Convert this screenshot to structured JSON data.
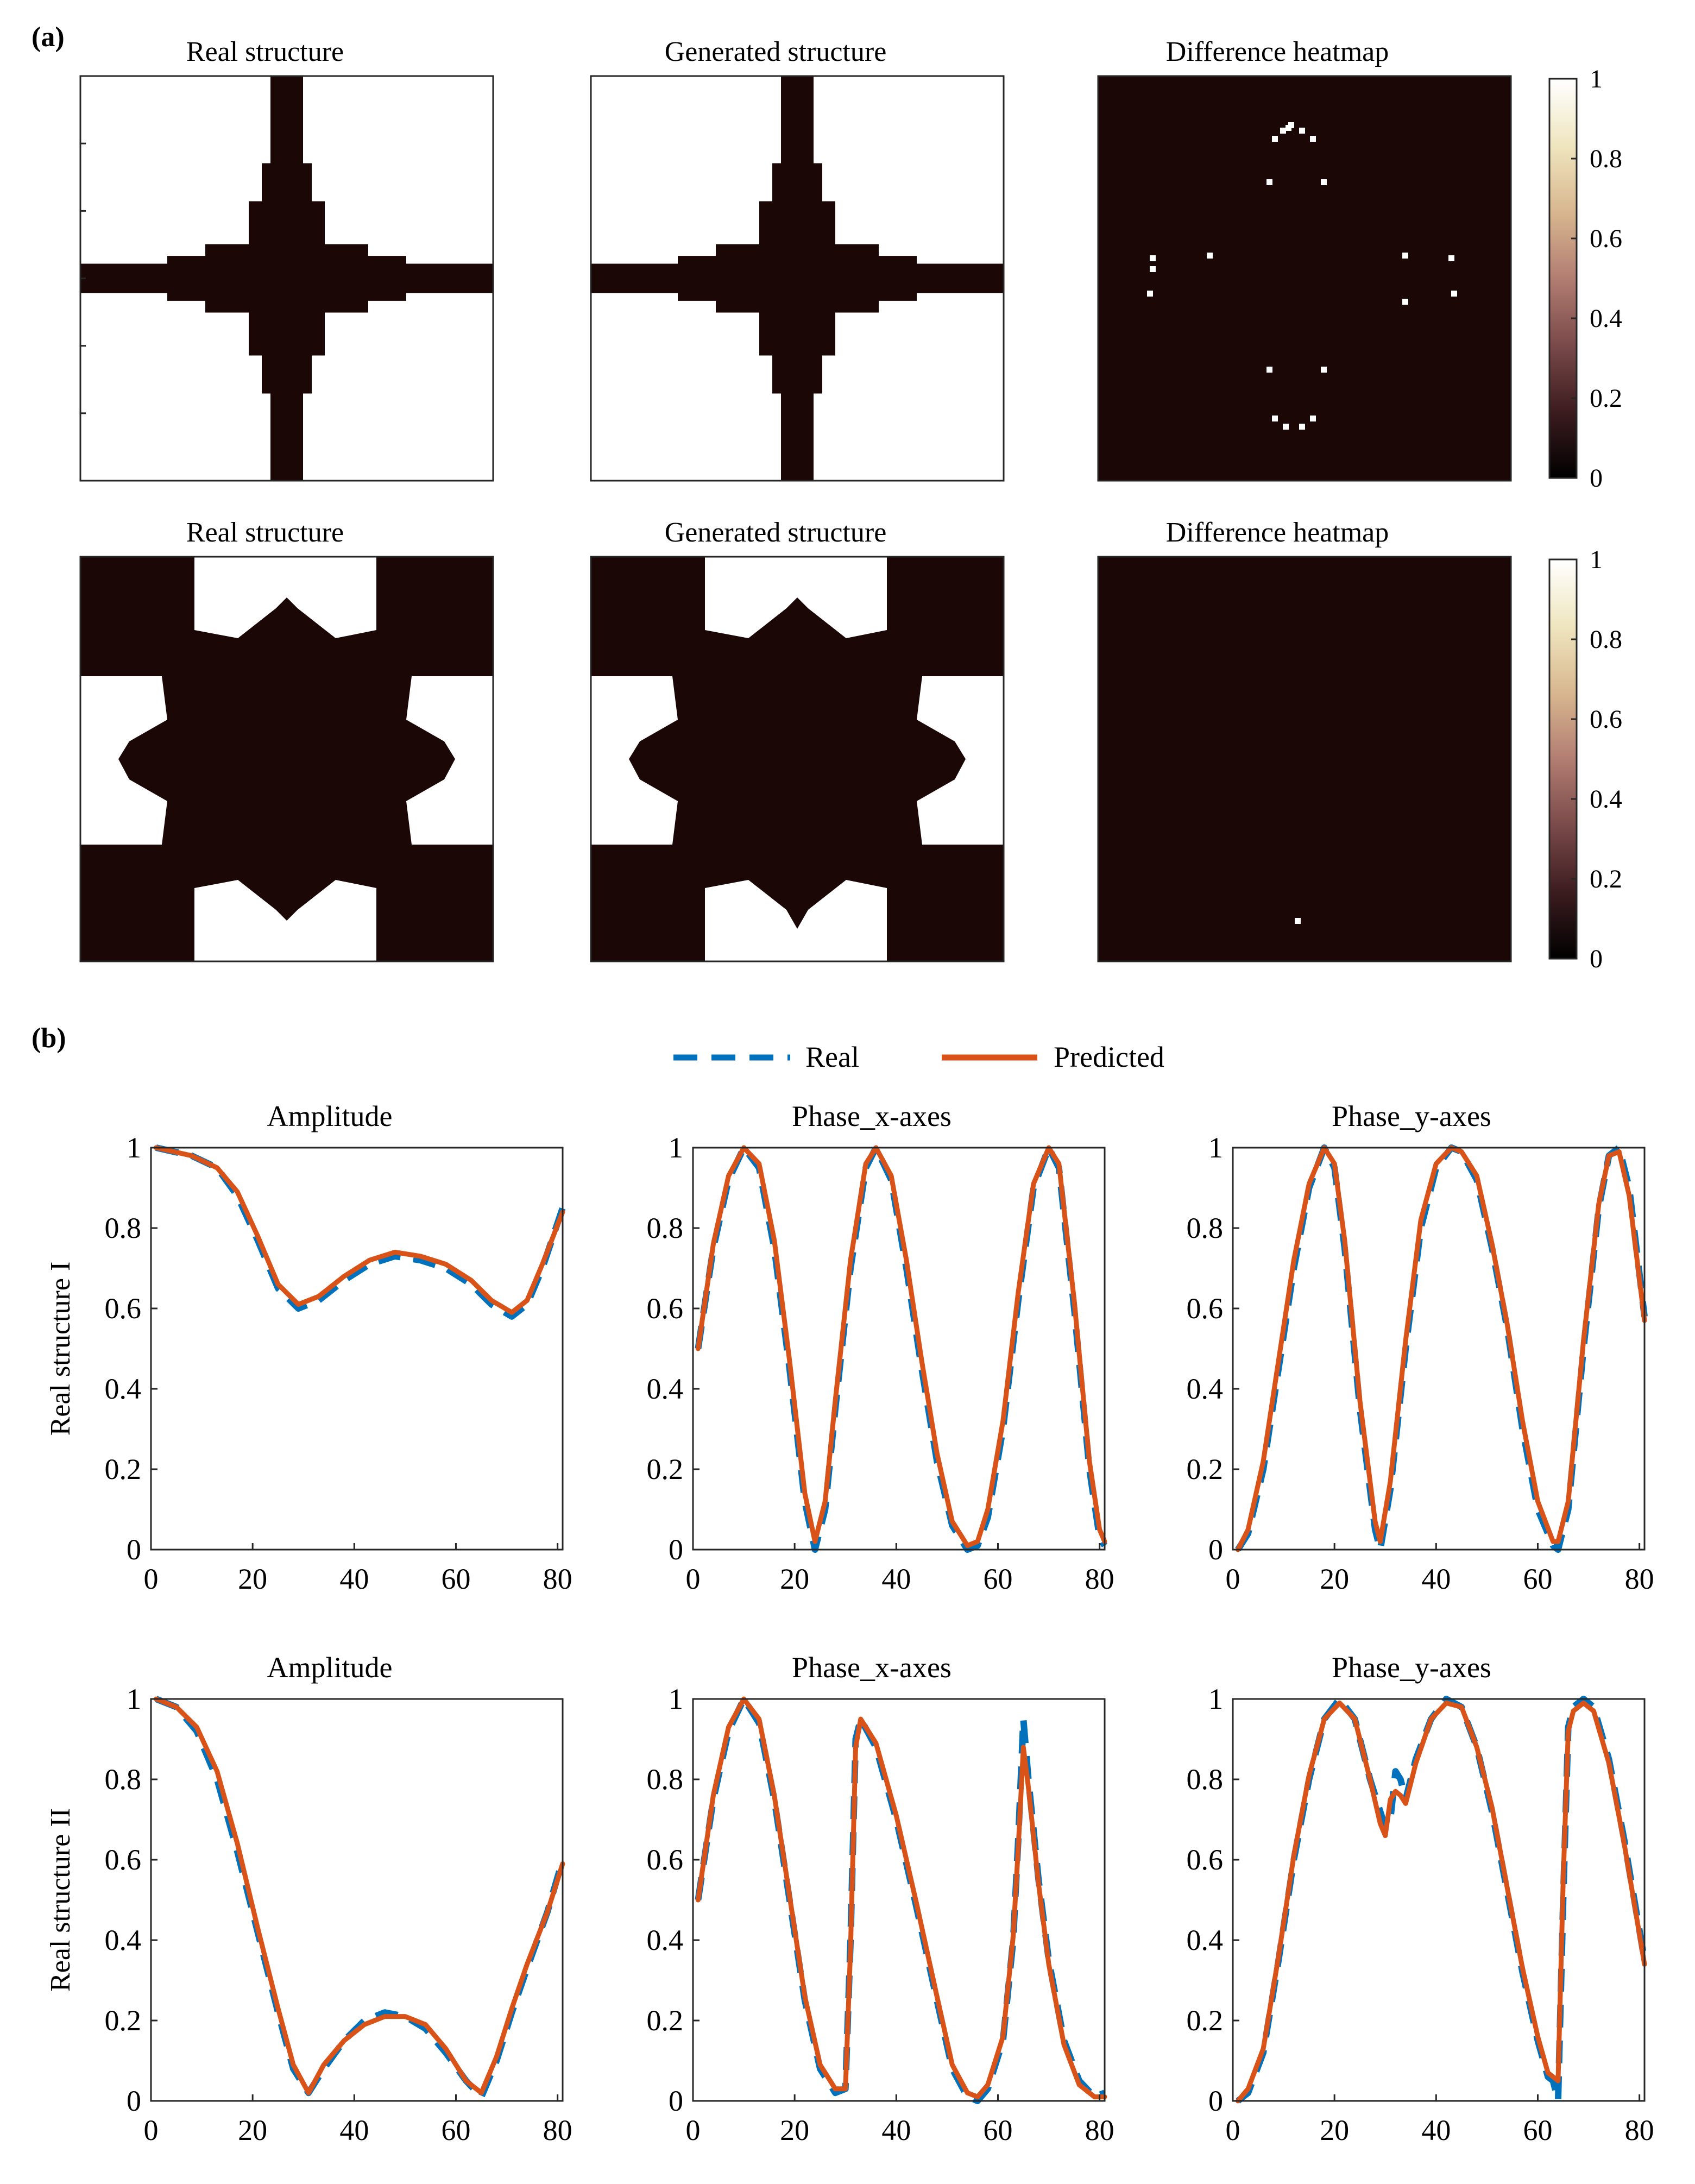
{
  "panel_labels": {
    "a": "(a)",
    "b": "(b)"
  },
  "colors": {
    "structure": "#1a0706",
    "real": "#0072BD",
    "predicted": "#D95319",
    "colormap": [
      "#000000",
      "#3c1c1f",
      "#7a4a4a",
      "#b27d72",
      "#d8b78f",
      "#efe6bf",
      "#ffffff"
    ]
  },
  "section_a": {
    "rows": [
      {
        "titles": [
          "Real structure",
          "Generated structure",
          "Difference heatmap"
        ],
        "colorbar_ticks": [
          "0",
          "0.2",
          "0.4",
          "0.6",
          "0.8",
          "1"
        ]
      },
      {
        "titles": [
          "Real structure",
          "Generated structure",
          "Difference heatmap"
        ],
        "colorbar_ticks": [
          "0",
          "0.2",
          "0.4",
          "0.6",
          "0.8",
          "1"
        ]
      }
    ]
  },
  "legend": {
    "real": "Real",
    "predicted": "Predicted"
  },
  "chart_data": [
    {
      "type": "line",
      "title": "Amplitude",
      "ylabel": "Real structure I",
      "xlim": [
        0,
        81
      ],
      "ylim": [
        0,
        1
      ],
      "xticks": [
        0,
        20,
        40,
        60,
        80
      ],
      "yticks": [
        0,
        0.2,
        0.4,
        0.6,
        0.8,
        1
      ],
      "series": [
        {
          "name": "Real",
          "x": [
            1,
            8,
            13,
            17,
            21,
            25,
            29,
            33,
            38,
            43,
            48,
            53,
            58,
            63,
            67,
            71,
            74,
            77,
            81
          ],
          "y": [
            1.0,
            0.98,
            0.95,
            0.88,
            0.77,
            0.65,
            0.6,
            0.62,
            0.67,
            0.71,
            0.73,
            0.72,
            0.7,
            0.66,
            0.61,
            0.58,
            0.61,
            0.7,
            0.85
          ]
        },
        {
          "name": "Predicted",
          "x": [
            1,
            8,
            13,
            17,
            21,
            25,
            29,
            33,
            38,
            43,
            48,
            53,
            58,
            63,
            67,
            71,
            74,
            77,
            81
          ],
          "y": [
            1.0,
            0.98,
            0.95,
            0.89,
            0.78,
            0.66,
            0.61,
            0.63,
            0.68,
            0.72,
            0.74,
            0.73,
            0.71,
            0.67,
            0.62,
            0.59,
            0.62,
            0.71,
            0.84
          ]
        }
      ]
    },
    {
      "type": "line",
      "title": "Phase_x-axes",
      "ylabel": "",
      "xlim": [
        0,
        81
      ],
      "ylim": [
        0,
        1
      ],
      "xticks": [
        0,
        20,
        40,
        60,
        80
      ],
      "yticks": [
        0,
        0.2,
        0.4,
        0.6,
        0.8,
        1
      ],
      "series": [
        {
          "name": "Real",
          "x": [
            1,
            4,
            7,
            10,
            13,
            16,
            19,
            22,
            24,
            26,
            28,
            31,
            34,
            36,
            39,
            42,
            45,
            48,
            51,
            54,
            56,
            58,
            61,
            64,
            67,
            70,
            72,
            75,
            78,
            80,
            81
          ],
          "y": [
            0.5,
            0.75,
            0.92,
            1.0,
            0.95,
            0.75,
            0.45,
            0.12,
            0.0,
            0.1,
            0.35,
            0.7,
            0.95,
            1.0,
            0.92,
            0.7,
            0.45,
            0.22,
            0.06,
            0.0,
            0.01,
            0.08,
            0.3,
            0.62,
            0.9,
            1.0,
            0.95,
            0.6,
            0.2,
            0.03,
            0.01
          ]
        },
        {
          "name": "Predicted",
          "x": [
            1,
            4,
            7,
            10,
            13,
            16,
            19,
            22,
            24,
            26,
            28,
            31,
            34,
            36,
            39,
            42,
            45,
            48,
            51,
            54,
            56,
            58,
            61,
            64,
            67,
            70,
            72,
            75,
            78,
            80,
            81
          ],
          "y": [
            0.5,
            0.76,
            0.93,
            1.0,
            0.96,
            0.77,
            0.47,
            0.14,
            0.02,
            0.12,
            0.37,
            0.72,
            0.96,
            1.0,
            0.93,
            0.72,
            0.47,
            0.24,
            0.07,
            0.01,
            0.02,
            0.1,
            0.32,
            0.64,
            0.91,
            1.0,
            0.96,
            0.62,
            0.22,
            0.05,
            0.02
          ]
        }
      ]
    },
    {
      "type": "line",
      "title": "Phase_y-axes",
      "ylabel": "",
      "xlim": [
        0,
        81
      ],
      "ylim": [
        0,
        1
      ],
      "xticks": [
        0,
        20,
        40,
        60,
        80
      ],
      "yticks": [
        0,
        0.2,
        0.4,
        0.6,
        0.8,
        1
      ],
      "series": [
        {
          "name": "Real",
          "x": [
            1,
            3,
            6,
            9,
            12,
            15,
            18,
            20,
            22,
            25,
            28,
            29,
            31,
            34,
            37,
            40,
            43,
            45,
            48,
            51,
            54,
            57,
            60,
            63,
            64,
            66,
            69,
            72,
            74,
            76,
            78,
            81
          ],
          "y": [
            0.0,
            0.04,
            0.2,
            0.45,
            0.7,
            0.9,
            1.0,
            0.95,
            0.75,
            0.35,
            0.05,
            0.0,
            0.15,
            0.5,
            0.8,
            0.95,
            1.0,
            0.99,
            0.92,
            0.75,
            0.55,
            0.3,
            0.1,
            0.01,
            0.0,
            0.1,
            0.5,
            0.85,
            0.98,
            1.0,
            0.9,
            0.58
          ]
        },
        {
          "name": "Predicted",
          "x": [
            1,
            3,
            6,
            9,
            12,
            15,
            18,
            20,
            22,
            25,
            28,
            29,
            31,
            34,
            37,
            40,
            43,
            45,
            48,
            51,
            54,
            57,
            60,
            63,
            64,
            66,
            69,
            72,
            74,
            76,
            78,
            81
          ],
          "y": [
            0.0,
            0.05,
            0.22,
            0.47,
            0.72,
            0.91,
            1.0,
            0.96,
            0.77,
            0.37,
            0.07,
            0.02,
            0.17,
            0.52,
            0.82,
            0.96,
            1.0,
            0.99,
            0.93,
            0.76,
            0.56,
            0.32,
            0.12,
            0.02,
            0.02,
            0.12,
            0.52,
            0.86,
            0.98,
            0.99,
            0.88,
            0.57
          ]
        }
      ]
    },
    {
      "type": "line",
      "title": "Amplitude",
      "ylabel": "Real structure II",
      "xlim": [
        0,
        81
      ],
      "ylim": [
        0,
        1
      ],
      "xticks": [
        0,
        20,
        40,
        60,
        80
      ],
      "yticks": [
        0,
        0.2,
        0.4,
        0.6,
        0.8,
        1
      ],
      "series": [
        {
          "name": "Real",
          "x": [
            1,
            5,
            9,
            13,
            17,
            21,
            25,
            28,
            31,
            34,
            38,
            42,
            46,
            50,
            54,
            58,
            62,
            65,
            68,
            71,
            74,
            78,
            81
          ],
          "y": [
            1.0,
            0.98,
            0.92,
            0.8,
            0.62,
            0.42,
            0.22,
            0.08,
            0.02,
            0.08,
            0.15,
            0.2,
            0.22,
            0.21,
            0.18,
            0.12,
            0.05,
            0.01,
            0.1,
            0.22,
            0.33,
            0.47,
            0.6
          ]
        },
        {
          "name": "Predicted",
          "x": [
            1,
            5,
            9,
            13,
            17,
            21,
            25,
            28,
            31,
            34,
            38,
            42,
            46,
            50,
            54,
            58,
            62,
            65,
            68,
            71,
            74,
            78,
            81
          ],
          "y": [
            1.0,
            0.98,
            0.93,
            0.82,
            0.64,
            0.43,
            0.23,
            0.09,
            0.02,
            0.09,
            0.15,
            0.19,
            0.21,
            0.21,
            0.19,
            0.13,
            0.05,
            0.02,
            0.11,
            0.23,
            0.34,
            0.47,
            0.59
          ]
        }
      ]
    },
    {
      "type": "line",
      "title": "Phase_x-axes",
      "ylabel": "",
      "xlim": [
        0,
        81
      ],
      "ylim": [
        0,
        1
      ],
      "xticks": [
        0,
        20,
        40,
        60,
        80
      ],
      "yticks": [
        0,
        0.2,
        0.4,
        0.6,
        0.8,
        1
      ],
      "series": [
        {
          "name": "Real",
          "x": [
            1,
            4,
            7,
            10,
            13,
            16,
            19,
            22,
            25,
            28,
            30,
            31,
            32,
            33,
            36,
            40,
            44,
            48,
            51,
            54,
            56,
            58,
            61,
            63,
            64,
            65,
            66,
            68,
            70,
            73,
            76,
            79,
            81
          ],
          "y": [
            0.5,
            0.75,
            0.92,
            1.0,
            0.94,
            0.75,
            0.5,
            0.25,
            0.08,
            0.02,
            0.03,
            0.4,
            0.9,
            0.95,
            0.88,
            0.7,
            0.48,
            0.25,
            0.08,
            0.01,
            0.0,
            0.03,
            0.15,
            0.4,
            0.65,
            0.95,
            0.8,
            0.55,
            0.35,
            0.15,
            0.05,
            0.01,
            0.02
          ]
        },
        {
          "name": "Predicted",
          "x": [
            1,
            4,
            7,
            10,
            13,
            16,
            19,
            22,
            25,
            28,
            30,
            31,
            32,
            33,
            36,
            40,
            44,
            48,
            51,
            54,
            56,
            58,
            61,
            63,
            64,
            65,
            66,
            68,
            70,
            73,
            76,
            79,
            81
          ],
          "y": [
            0.5,
            0.76,
            0.93,
            1.0,
            0.95,
            0.76,
            0.51,
            0.26,
            0.09,
            0.03,
            0.03,
            0.38,
            0.88,
            0.95,
            0.89,
            0.71,
            0.49,
            0.26,
            0.09,
            0.02,
            0.01,
            0.04,
            0.16,
            0.41,
            0.63,
            0.88,
            0.78,
            0.54,
            0.34,
            0.14,
            0.04,
            0.01,
            0.01
          ]
        }
      ]
    },
    {
      "type": "line",
      "title": "Phase_y-axes",
      "ylabel": "",
      "xlim": [
        0,
        81
      ],
      "ylim": [
        0,
        1
      ],
      "xticks": [
        0,
        20,
        40,
        60,
        80
      ],
      "yticks": [
        0,
        0.2,
        0.4,
        0.6,
        0.8,
        1
      ],
      "series": [
        {
          "name": "Real",
          "x": [
            1,
            3,
            6,
            9,
            12,
            15,
            18,
            21,
            24,
            27,
            29,
            30,
            31,
            32,
            33,
            34,
            36,
            39,
            42,
            45,
            48,
            51,
            54,
            57,
            60,
            62,
            63,
            64,
            65,
            66,
            67,
            69,
            71,
            74,
            77,
            81
          ],
          "y": [
            0.0,
            0.02,
            0.12,
            0.35,
            0.6,
            0.8,
            0.95,
            1.0,
            0.95,
            0.8,
            0.72,
            0.68,
            0.7,
            0.82,
            0.8,
            0.75,
            0.85,
            0.95,
            1.0,
            0.98,
            0.88,
            0.72,
            0.52,
            0.32,
            0.15,
            0.06,
            0.05,
            0.0,
            0.5,
            0.93,
            0.98,
            1.0,
            0.98,
            0.85,
            0.65,
            0.35
          ]
        },
        {
          "name": "Predicted",
          "x": [
            1,
            3,
            6,
            9,
            12,
            15,
            18,
            21,
            24,
            27,
            29,
            30,
            31,
            32,
            33,
            34,
            36,
            39,
            42,
            45,
            48,
            51,
            54,
            57,
            60,
            62,
            63,
            64,
            65,
            66,
            67,
            69,
            71,
            74,
            77,
            81
          ],
          "y": [
            0.0,
            0.03,
            0.13,
            0.36,
            0.61,
            0.81,
            0.95,
            0.99,
            0.95,
            0.8,
            0.69,
            0.66,
            0.75,
            0.77,
            0.76,
            0.74,
            0.84,
            0.95,
            0.99,
            0.98,
            0.88,
            0.73,
            0.53,
            0.33,
            0.16,
            0.07,
            0.06,
            0.05,
            0.55,
            0.92,
            0.97,
            0.99,
            0.97,
            0.84,
            0.64,
            0.34
          ]
        }
      ]
    }
  ]
}
